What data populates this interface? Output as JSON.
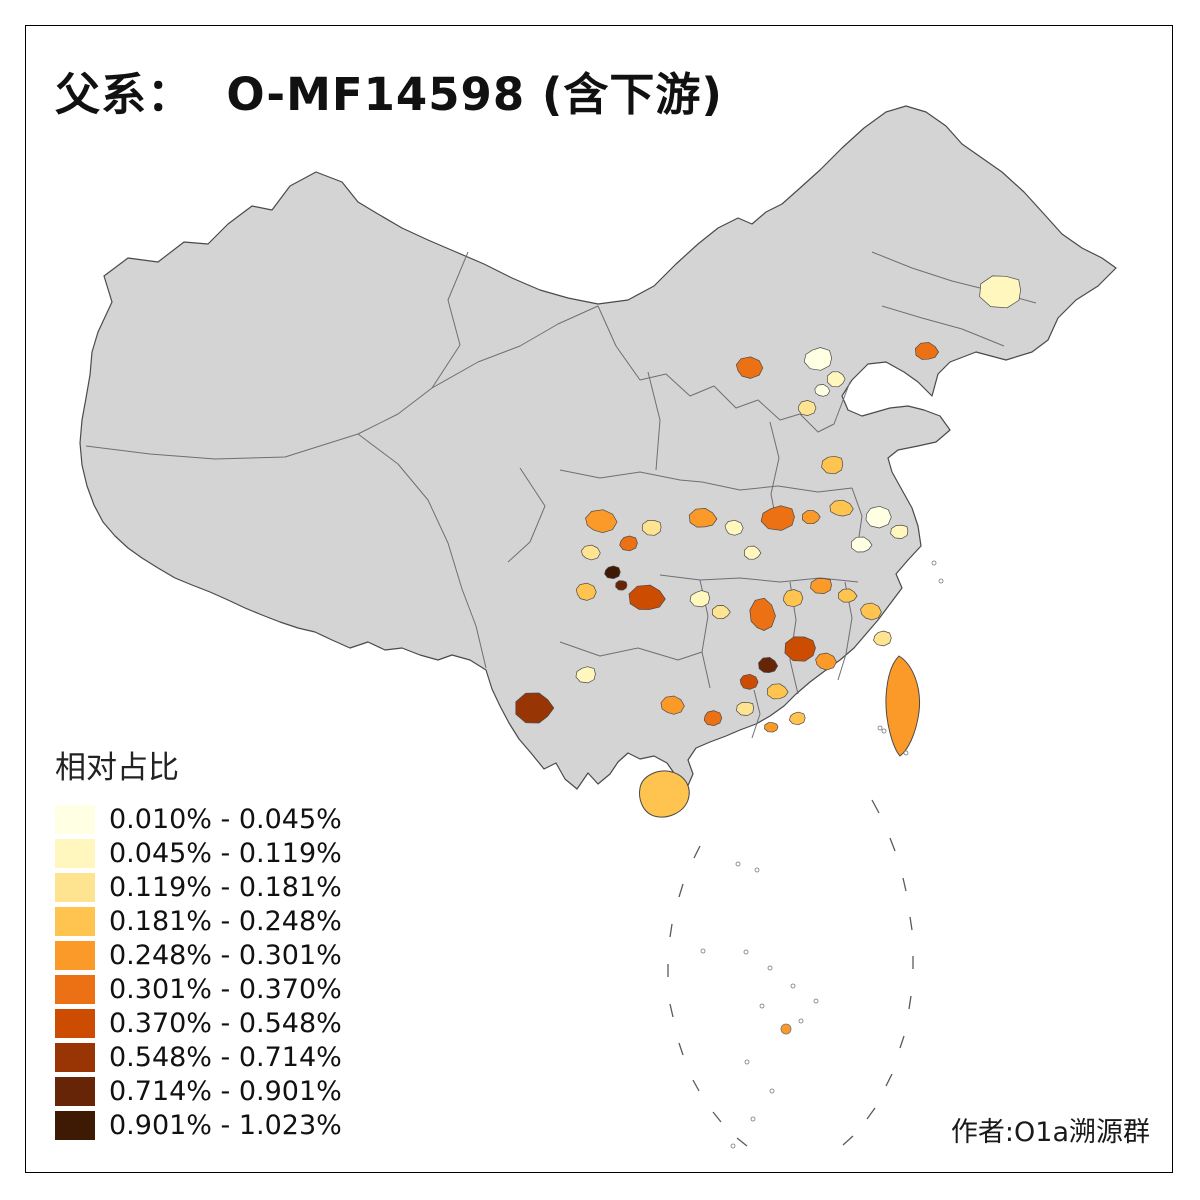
{
  "page": {
    "title": "父系：  O-MF14598 (含下游)",
    "author_credit": "作者:O1a溯源群"
  },
  "legend": {
    "title": "相对占比"
  },
  "chart_data": {
    "type": "choropleth",
    "title": "父系： O-MF14598 (含下游)",
    "legend_title": "相对占比",
    "author": "作者:O1a溯源群",
    "base_color": "#d4d4d4",
    "border_color": "#4a4a4a",
    "background_color": "#ffffff",
    "bins": [
      {
        "label": "0.010% - 0.045%",
        "min": 0.01,
        "max": 0.045,
        "color": "#FFFFE3"
      },
      {
        "label": "0.045% - 0.119%",
        "min": 0.045,
        "max": 0.119,
        "color": "#FFF7BD"
      },
      {
        "label": "0.119% - 0.181%",
        "min": 0.119,
        "max": 0.181,
        "color": "#FEE391"
      },
      {
        "label": "0.181% - 0.248%",
        "min": 0.181,
        "max": 0.248,
        "color": "#FEC44F"
      },
      {
        "label": "0.248% - 0.301%",
        "min": 0.248,
        "max": 0.301,
        "color": "#FB9A29"
      },
      {
        "label": "0.301% - 0.370%",
        "min": 0.301,
        "max": 0.37,
        "color": "#EC7014"
      },
      {
        "label": "0.370% - 0.548%",
        "min": 0.37,
        "max": 0.548,
        "color": "#CC4C02"
      },
      {
        "label": "0.548% - 0.714%",
        "min": 0.548,
        "max": 0.714,
        "color": "#993404"
      },
      {
        "label": "0.714% - 0.901%",
        "min": 0.714,
        "max": 0.901,
        "color": "#662506"
      },
      {
        "label": "0.901% - 1.023%",
        "min": 0.901,
        "max": 1.023,
        "color": "#3E1A05"
      }
    ]
  }
}
